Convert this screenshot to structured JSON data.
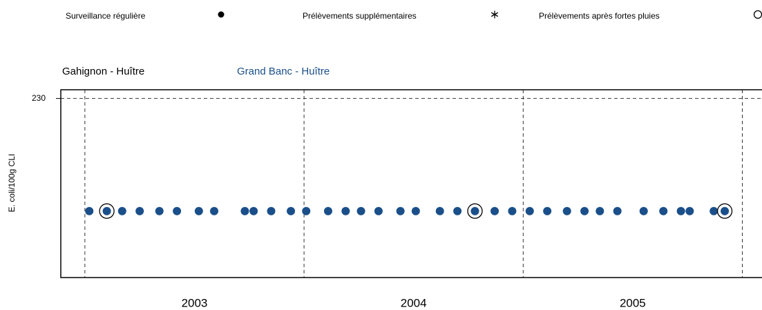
{
  "chart_data": {
    "type": "scatter",
    "legend_markers": [
      {
        "name": "Surveillance régulière",
        "marker": "dot"
      },
      {
        "name": "Prélèvements supplémentaires",
        "marker": "asterisk"
      },
      {
        "name": "Prélèvements après fortes pluies",
        "marker": "circle"
      }
    ],
    "y_label": "E. coli/100g CLI",
    "log_y": true,
    "ylim": [
      4,
      280
    ],
    "yticks": [
      230
    ],
    "xlim": [
      2002.89,
      2006.09
    ],
    "xticks": [
      {
        "value": 2003.5,
        "label": "2003"
      },
      {
        "value": 2004.5,
        "label": "2004"
      },
      {
        "value": 2005.5,
        "label": "2005"
      }
    ],
    "xgrid": [
      2003,
      2004,
      2005,
      2006
    ],
    "series": [
      {
        "name": "Gahignon - Huître",
        "color": "#000000",
        "x": [],
        "values": [],
        "sampling": []
      },
      {
        "name": "Grand Banc - Huître",
        "color": "#1a4f8a",
        "x": [
          2003.02,
          2003.1,
          2003.17,
          2003.25,
          2003.34,
          2003.42,
          2003.52,
          2003.59,
          2003.73,
          2003.77,
          2003.85,
          2003.94,
          2004.01,
          2004.11,
          2004.19,
          2004.26,
          2004.34,
          2004.44,
          2004.51,
          2004.62,
          2004.7,
          2004.78,
          2004.87,
          2004.95,
          2005.03,
          2005.11,
          2005.2,
          2005.28,
          2005.35,
          2005.43,
          2005.55,
          2005.64,
          2005.72,
          2005.76,
          2005.87,
          2005.92
        ],
        "values": [
          18,
          18,
          18,
          18,
          18,
          18,
          18,
          18,
          18,
          18,
          18,
          18,
          18,
          18,
          18,
          18,
          18,
          18,
          18,
          18,
          18,
          18,
          18,
          18,
          18,
          18,
          18,
          18,
          18,
          18,
          18,
          18,
          18,
          18,
          18,
          18
        ],
        "sampling": [
          "dot",
          "circle",
          "dot",
          "dot",
          "dot",
          "dot",
          "dot",
          "dot",
          "dot",
          "dot",
          "dot",
          "dot",
          "dot",
          "dot",
          "dot",
          "dot",
          "dot",
          "dot",
          "dot",
          "dot",
          "dot",
          "circle",
          "dot",
          "dot",
          "dot",
          "dot",
          "dot",
          "dot",
          "dot",
          "dot",
          "dot",
          "dot",
          "dot",
          "dot",
          "dot",
          "circle"
        ]
      }
    ]
  }
}
